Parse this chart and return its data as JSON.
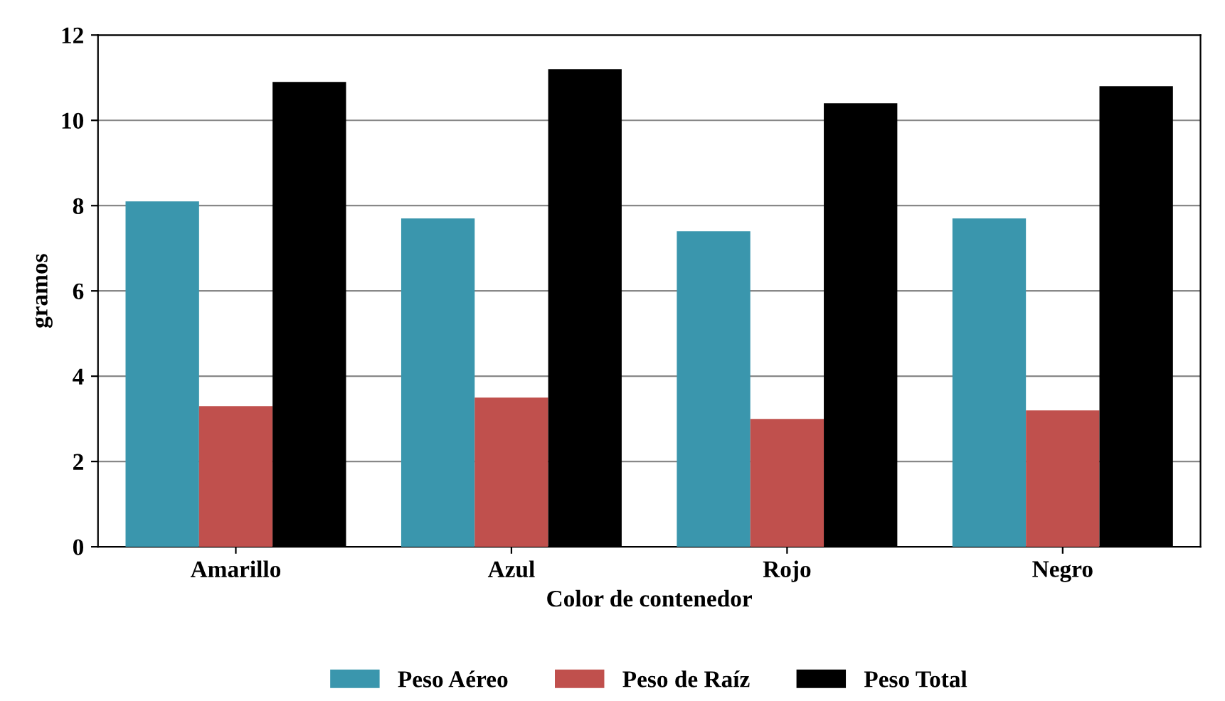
{
  "chart_data": {
    "type": "bar",
    "xlabel": "Color de contenedor",
    "ylabel": "gramos",
    "categories": [
      "Amarillo",
      "Azul",
      "Rojo",
      "Negro"
    ],
    "series": [
      {
        "name": "Peso Aéreo",
        "color": "#3a96ad",
        "values": [
          8.1,
          7.7,
          7.4,
          7.7
        ]
      },
      {
        "name": "Peso de Raíz",
        "color": "#c0504d",
        "values": [
          3.3,
          3.5,
          3.0,
          3.2
        ]
      },
      {
        "name": "Peso Total",
        "color": "#000000",
        "values": [
          10.9,
          11.2,
          10.4,
          10.8
        ]
      }
    ],
    "ylim": [
      0,
      12
    ],
    "yticks": [
      0,
      2,
      4,
      6,
      8,
      10,
      12
    ],
    "grid": "y",
    "legend": "bottom"
  }
}
